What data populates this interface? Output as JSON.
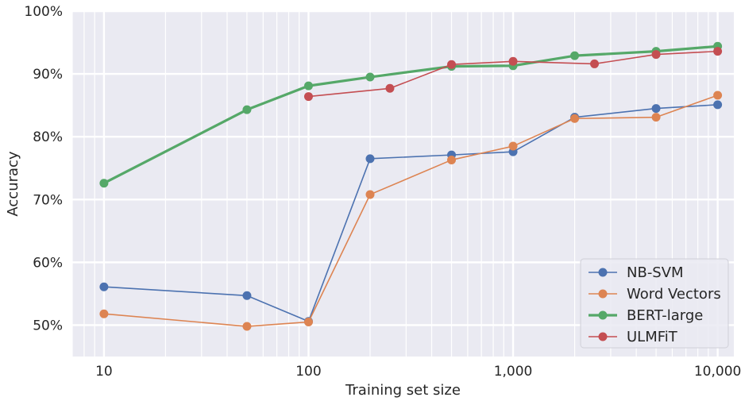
{
  "chart_data": {
    "type": "line",
    "title": "",
    "xlabel": "Training set size",
    "ylabel": "Accuracy",
    "x_scale": "log",
    "xlim": [
      7,
      12000
    ],
    "ylim": [
      45,
      100
    ],
    "x_ticks": [
      {
        "value": 10,
        "label": "10"
      },
      {
        "value": 100,
        "label": "100"
      },
      {
        "value": 1000,
        "label": "1,000"
      },
      {
        "value": 10000,
        "label": "10,000"
      }
    ],
    "y_ticks": [
      {
        "value": 50,
        "label": "50%"
      },
      {
        "value": 60,
        "label": "60%"
      },
      {
        "value": 70,
        "label": "70%"
      },
      {
        "value": 80,
        "label": "80%"
      },
      {
        "value": 90,
        "label": "90%"
      },
      {
        "value": 100,
        "label": "100%"
      }
    ],
    "grid": true,
    "legend_position": "bottom-right",
    "series": [
      {
        "name": "NB-SVM",
        "color": "#4c72b0",
        "x": [
          10,
          50,
          100,
          200,
          500,
          1000,
          2000,
          5000,
          10000
        ],
        "y": [
          56.1,
          54.7,
          50.6,
          76.5,
          77.1,
          77.6,
          83.1,
          84.5,
          85.1
        ]
      },
      {
        "name": "Word Vectors",
        "color": "#dd8452",
        "x": [
          10,
          50,
          100,
          200,
          500,
          1000,
          2000,
          5000,
          10000
        ],
        "y": [
          51.8,
          49.8,
          50.5,
          70.8,
          76.3,
          78.5,
          82.9,
          83.1,
          86.6
        ]
      },
      {
        "name": "BERT-large",
        "color": "#55a868",
        "x": [
          10,
          50,
          100,
          200,
          500,
          1000,
          2000,
          5000,
          10000
        ],
        "y": [
          72.6,
          84.3,
          88.1,
          89.5,
          91.2,
          91.3,
          92.9,
          93.6,
          94.4
        ]
      },
      {
        "name": "ULMFiT",
        "color": "#c44e52",
        "x": [
          100,
          250,
          500,
          1000,
          2500,
          5000,
          10000
        ],
        "y": [
          86.4,
          87.7,
          91.5,
          92.0,
          91.6,
          93.1,
          93.6
        ]
      }
    ]
  }
}
